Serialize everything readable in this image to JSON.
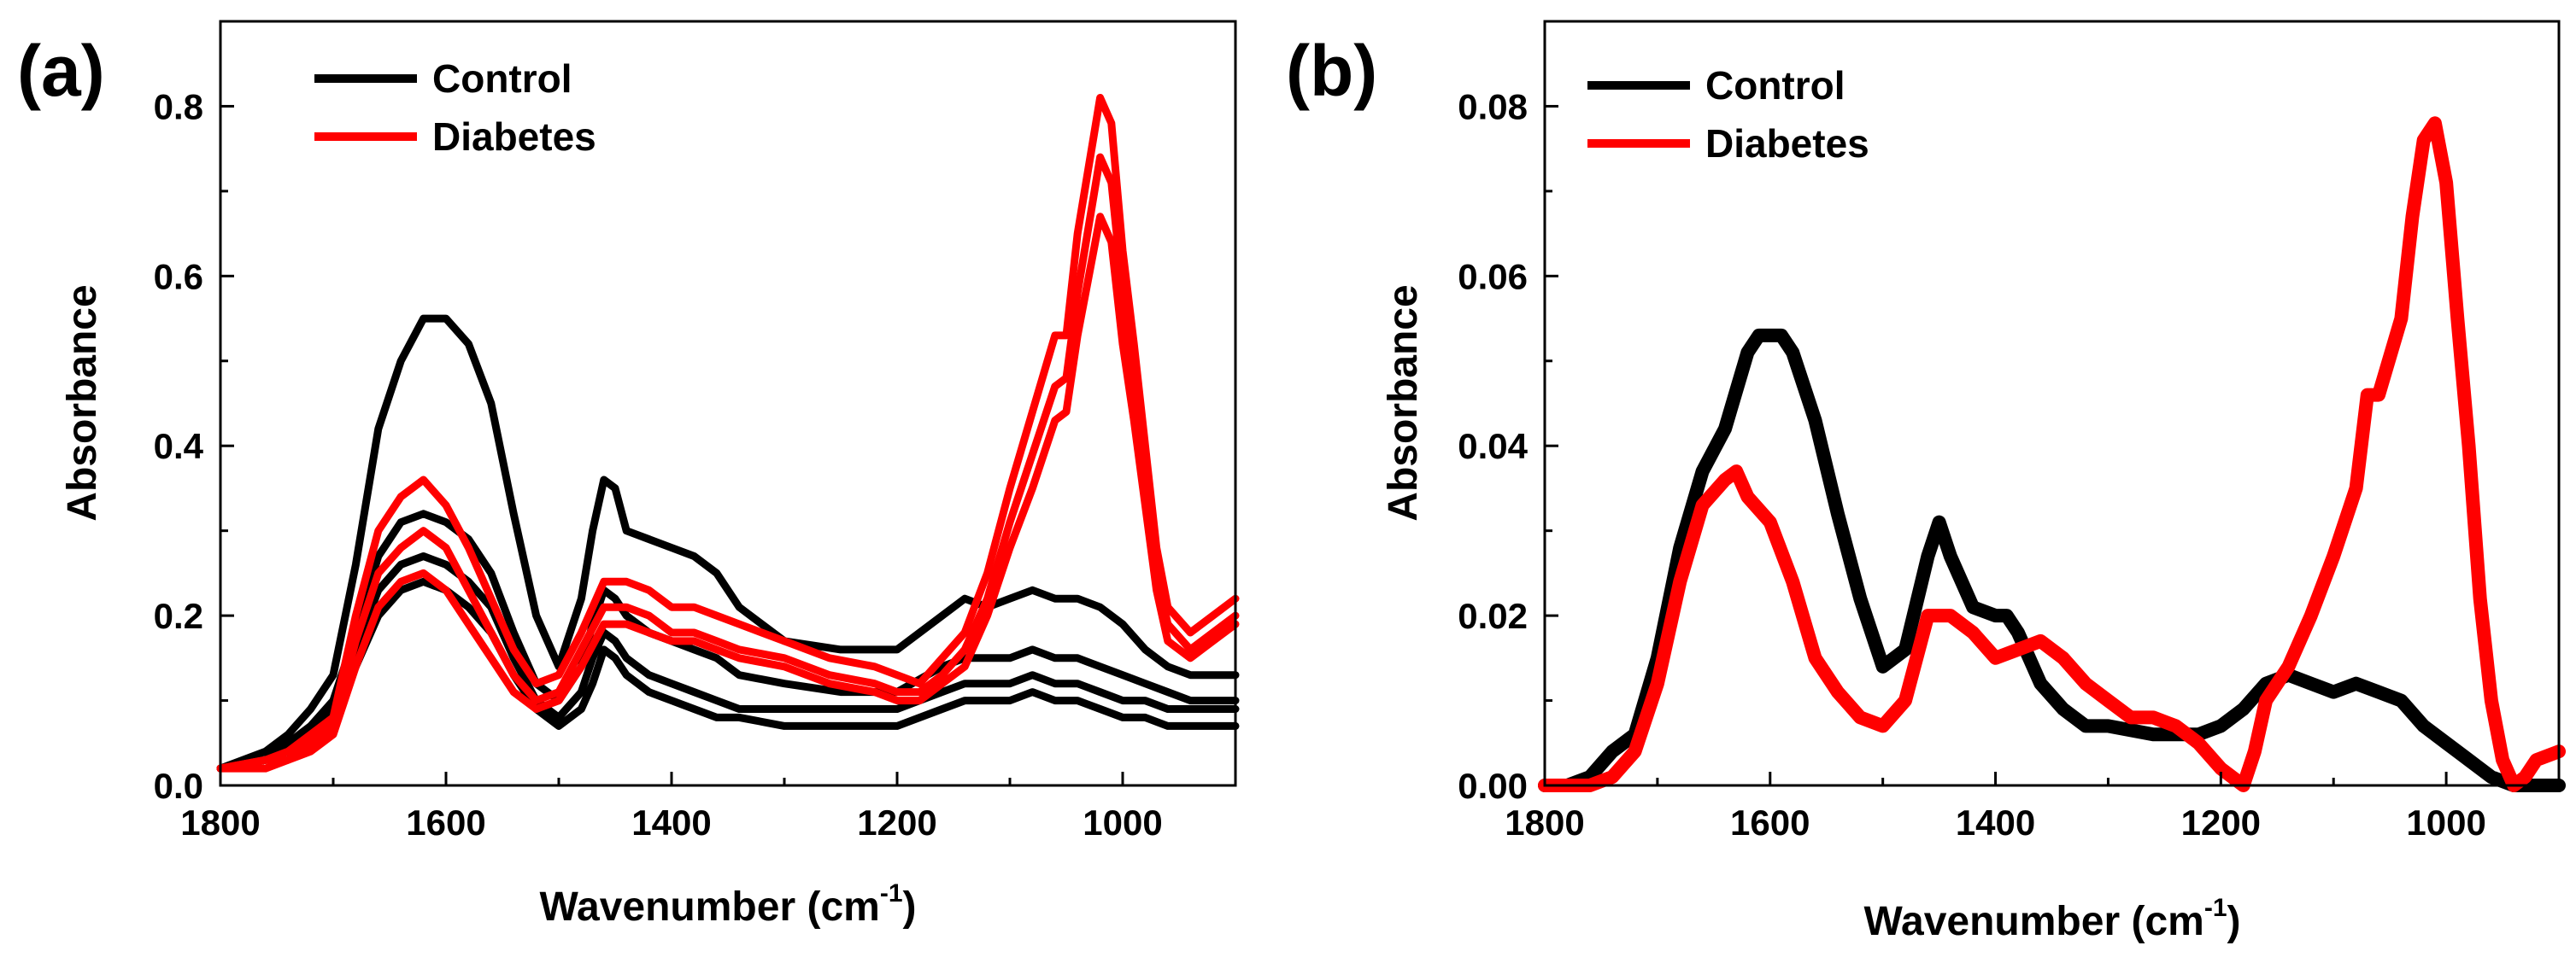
{
  "chart_data": [
    {
      "panel": "(a)",
      "type": "line",
      "title": "",
      "xlabel": "Wavenumber (cm",
      "xlabel_sup": "-1",
      "xlabel_close": ")",
      "ylabel": "Absorbance",
      "xlim": [
        1800,
        900
      ],
      "ylim": [
        0,
        0.9
      ],
      "xticks": [
        1800,
        1600,
        1400,
        1200,
        1000
      ],
      "xtick_labels": [
        "1800",
        "1600",
        "1400",
        "1200",
        "1000"
      ],
      "yticks": [
        0,
        0.2,
        0.4,
        0.6,
        0.8
      ],
      "ytick_labels": [
        "0.0",
        "0.2",
        "0.4",
        "0.6",
        "0.8"
      ],
      "legend": {
        "position": "top-left",
        "entries": [
          {
            "label": "Control",
            "color": "#000000"
          },
          {
            "label": "Diabetes",
            "color": "#ff0000"
          }
        ]
      },
      "series": [
        {
          "name": "Control",
          "color": "#000000",
          "x": [
            1800,
            1760,
            1740,
            1720,
            1700,
            1680,
            1660,
            1640,
            1620,
            1600,
            1580,
            1560,
            1540,
            1520,
            1500,
            1480,
            1470,
            1460,
            1450,
            1440,
            1420,
            1400,
            1380,
            1360,
            1340,
            1300,
            1250,
            1200,
            1160,
            1140,
            1120,
            1100,
            1080,
            1060,
            1040,
            1020,
            1000,
            980,
            960,
            940,
            900
          ],
          "y": [
            0.02,
            0.04,
            0.06,
            0.09,
            0.13,
            0.26,
            0.42,
            0.5,
            0.55,
            0.55,
            0.52,
            0.45,
            0.32,
            0.2,
            0.14,
            0.22,
            0.3,
            0.36,
            0.35,
            0.3,
            0.29,
            0.28,
            0.27,
            0.25,
            0.21,
            0.17,
            0.16,
            0.16,
            0.2,
            0.22,
            0.21,
            0.22,
            0.23,
            0.22,
            0.22,
            0.21,
            0.19,
            0.16,
            0.14,
            0.13,
            0.13
          ]
        },
        {
          "name": "Control",
          "color": "#000000",
          "x": [
            1800,
            1760,
            1740,
            1720,
            1700,
            1680,
            1660,
            1640,
            1620,
            1600,
            1580,
            1560,
            1540,
            1520,
            1500,
            1480,
            1470,
            1460,
            1450,
            1440,
            1420,
            1400,
            1380,
            1360,
            1340,
            1300,
            1250,
            1200,
            1160,
            1140,
            1120,
            1100,
            1080,
            1060,
            1040,
            1020,
            1000,
            980,
            960,
            940,
            900
          ],
          "y": [
            0.02,
            0.03,
            0.05,
            0.07,
            0.1,
            0.18,
            0.27,
            0.31,
            0.32,
            0.31,
            0.29,
            0.25,
            0.18,
            0.12,
            0.1,
            0.14,
            0.19,
            0.23,
            0.22,
            0.2,
            0.18,
            0.17,
            0.16,
            0.15,
            0.13,
            0.12,
            0.11,
            0.11,
            0.14,
            0.15,
            0.15,
            0.15,
            0.16,
            0.15,
            0.15,
            0.14,
            0.13,
            0.12,
            0.11,
            0.1,
            0.1
          ]
        },
        {
          "name": "Control",
          "color": "#000000",
          "x": [
            1800,
            1760,
            1740,
            1720,
            1700,
            1680,
            1660,
            1640,
            1620,
            1600,
            1580,
            1560,
            1540,
            1520,
            1500,
            1480,
            1470,
            1460,
            1450,
            1440,
            1420,
            1400,
            1380,
            1360,
            1340,
            1300,
            1250,
            1200,
            1160,
            1140,
            1120,
            1100,
            1080,
            1060,
            1040,
            1020,
            1000,
            980,
            960,
            940,
            900
          ],
          "y": [
            0.02,
            0.03,
            0.04,
            0.06,
            0.09,
            0.16,
            0.23,
            0.26,
            0.27,
            0.26,
            0.24,
            0.21,
            0.15,
            0.1,
            0.08,
            0.11,
            0.15,
            0.18,
            0.17,
            0.15,
            0.13,
            0.12,
            0.11,
            0.1,
            0.09,
            0.09,
            0.09,
            0.09,
            0.11,
            0.12,
            0.12,
            0.12,
            0.13,
            0.12,
            0.12,
            0.11,
            0.1,
            0.1,
            0.09,
            0.09,
            0.09
          ]
        },
        {
          "name": "Control",
          "color": "#000000",
          "x": [
            1800,
            1760,
            1740,
            1720,
            1700,
            1680,
            1660,
            1640,
            1620,
            1600,
            1580,
            1560,
            1540,
            1520,
            1500,
            1480,
            1470,
            1460,
            1450,
            1440,
            1420,
            1400,
            1380,
            1360,
            1340,
            1300,
            1250,
            1200,
            1160,
            1140,
            1120,
            1100,
            1080,
            1060,
            1040,
            1020,
            1000,
            980,
            960,
            940,
            900
          ],
          "y": [
            0.02,
            0.03,
            0.04,
            0.05,
            0.08,
            0.14,
            0.2,
            0.23,
            0.24,
            0.23,
            0.21,
            0.18,
            0.13,
            0.09,
            0.07,
            0.09,
            0.12,
            0.16,
            0.15,
            0.13,
            0.11,
            0.1,
            0.09,
            0.08,
            0.08,
            0.07,
            0.07,
            0.07,
            0.09,
            0.1,
            0.1,
            0.1,
            0.11,
            0.1,
            0.1,
            0.09,
            0.08,
            0.08,
            0.07,
            0.07,
            0.07
          ]
        },
        {
          "name": "Diabetes",
          "color": "#ff0000",
          "x": [
            1800,
            1760,
            1740,
            1720,
            1700,
            1680,
            1660,
            1640,
            1620,
            1600,
            1580,
            1560,
            1540,
            1520,
            1500,
            1480,
            1460,
            1440,
            1420,
            1400,
            1380,
            1360,
            1340,
            1300,
            1260,
            1220,
            1200,
            1180,
            1160,
            1140,
            1120,
            1100,
            1080,
            1060,
            1050,
            1040,
            1030,
            1020,
            1010,
            1000,
            990,
            980,
            970,
            960,
            940,
            920,
            900
          ],
          "y": [
            0.02,
            0.03,
            0.04,
            0.06,
            0.08,
            0.2,
            0.3,
            0.34,
            0.36,
            0.33,
            0.28,
            0.22,
            0.16,
            0.12,
            0.13,
            0.18,
            0.24,
            0.24,
            0.23,
            0.21,
            0.21,
            0.2,
            0.19,
            0.17,
            0.15,
            0.14,
            0.13,
            0.12,
            0.15,
            0.18,
            0.25,
            0.35,
            0.44,
            0.53,
            0.53,
            0.65,
            0.73,
            0.81,
            0.78,
            0.63,
            0.52,
            0.4,
            0.28,
            0.21,
            0.18,
            0.2,
            0.22
          ]
        },
        {
          "name": "Diabetes",
          "color": "#ff0000",
          "x": [
            1800,
            1760,
            1740,
            1720,
            1700,
            1680,
            1660,
            1640,
            1620,
            1600,
            1580,
            1560,
            1540,
            1520,
            1500,
            1480,
            1460,
            1440,
            1420,
            1400,
            1380,
            1360,
            1340,
            1300,
            1260,
            1220,
            1200,
            1180,
            1160,
            1140,
            1120,
            1100,
            1080,
            1060,
            1050,
            1040,
            1030,
            1020,
            1010,
            1000,
            990,
            980,
            970,
            960,
            940,
            920,
            900
          ],
          "y": [
            0.02,
            0.03,
            0.03,
            0.05,
            0.07,
            0.17,
            0.25,
            0.28,
            0.3,
            0.28,
            0.23,
            0.18,
            0.13,
            0.1,
            0.11,
            0.16,
            0.21,
            0.21,
            0.2,
            0.18,
            0.18,
            0.17,
            0.16,
            0.15,
            0.13,
            0.12,
            0.11,
            0.11,
            0.13,
            0.16,
            0.22,
            0.31,
            0.39,
            0.47,
            0.48,
            0.58,
            0.66,
            0.74,
            0.71,
            0.58,
            0.47,
            0.36,
            0.25,
            0.19,
            0.16,
            0.18,
            0.2
          ]
        },
        {
          "name": "Diabetes",
          "color": "#ff0000",
          "x": [
            1800,
            1760,
            1740,
            1720,
            1700,
            1680,
            1660,
            1640,
            1620,
            1600,
            1580,
            1560,
            1540,
            1520,
            1500,
            1480,
            1460,
            1440,
            1420,
            1400,
            1380,
            1360,
            1340,
            1300,
            1260,
            1220,
            1200,
            1180,
            1160,
            1140,
            1120,
            1100,
            1080,
            1060,
            1050,
            1040,
            1030,
            1020,
            1010,
            1000,
            990,
            980,
            970,
            960,
            940,
            920,
            900
          ],
          "y": [
            0.02,
            0.02,
            0.03,
            0.04,
            0.06,
            0.14,
            0.21,
            0.24,
            0.25,
            0.23,
            0.19,
            0.15,
            0.11,
            0.09,
            0.1,
            0.14,
            0.19,
            0.19,
            0.18,
            0.17,
            0.17,
            0.16,
            0.15,
            0.14,
            0.12,
            0.11,
            0.1,
            0.1,
            0.12,
            0.14,
            0.2,
            0.28,
            0.35,
            0.43,
            0.44,
            0.53,
            0.6,
            0.67,
            0.64,
            0.52,
            0.43,
            0.33,
            0.23,
            0.17,
            0.15,
            0.17,
            0.19
          ]
        }
      ]
    },
    {
      "panel": "(b)",
      "type": "line",
      "title": "",
      "xlabel": "Wavenumber (cm",
      "xlabel_sup": "-1",
      "xlabel_close": ")",
      "ylabel": "Absorbance",
      "xlim": [
        1800,
        900
      ],
      "ylim": [
        0,
        0.09
      ],
      "xticks": [
        1800,
        1600,
        1400,
        1200,
        1000
      ],
      "xtick_labels": [
        "1800",
        "1600",
        "1400",
        "1200",
        "1000"
      ],
      "yticks": [
        0,
        0.02,
        0.04,
        0.06,
        0.08
      ],
      "ytick_labels": [
        "0.00",
        "0.02",
        "0.04",
        "0.06",
        "0.08"
      ],
      "legend": {
        "position": "top-left",
        "entries": [
          {
            "label": "Control",
            "color": "#000000"
          },
          {
            "label": "Diabetes",
            "color": "#ff0000"
          }
        ]
      },
      "series": [
        {
          "name": "Control",
          "color": "#000000",
          "x": [
            1800,
            1780,
            1760,
            1740,
            1720,
            1700,
            1680,
            1660,
            1640,
            1620,
            1610,
            1600,
            1590,
            1580,
            1560,
            1540,
            1520,
            1500,
            1480,
            1460,
            1450,
            1440,
            1420,
            1400,
            1390,
            1380,
            1360,
            1340,
            1320,
            1300,
            1260,
            1220,
            1200,
            1180,
            1160,
            1140,
            1120,
            1100,
            1080,
            1060,
            1040,
            1020,
            1000,
            980,
            960,
            940,
            920,
            900
          ],
          "y": [
            0,
            0,
            0.001,
            0.004,
            0.006,
            0.015,
            0.028,
            0.037,
            0.042,
            0.051,
            0.053,
            0.053,
            0.053,
            0.051,
            0.043,
            0.032,
            0.022,
            0.014,
            0.016,
            0.027,
            0.031,
            0.027,
            0.021,
            0.02,
            0.02,
            0.018,
            0.012,
            0.009,
            0.007,
            0.007,
            0.006,
            0.006,
            0.007,
            0.009,
            0.012,
            0.013,
            0.012,
            0.011,
            0.012,
            0.011,
            0.01,
            0.007,
            0.005,
            0.003,
            0.001,
            0,
            0,
            0
          ]
        },
        {
          "name": "Diabetes",
          "color": "#ff0000",
          "x": [
            1800,
            1780,
            1760,
            1740,
            1720,
            1700,
            1680,
            1660,
            1640,
            1630,
            1620,
            1600,
            1580,
            1560,
            1540,
            1520,
            1500,
            1480,
            1460,
            1440,
            1420,
            1400,
            1380,
            1360,
            1340,
            1320,
            1300,
            1280,
            1260,
            1240,
            1220,
            1200,
            1190,
            1180,
            1170,
            1160,
            1140,
            1120,
            1100,
            1080,
            1070,
            1060,
            1040,
            1030,
            1020,
            1010,
            1000,
            990,
            980,
            970,
            960,
            950,
            940,
            930,
            920,
            900
          ],
          "y": [
            0,
            0,
            0,
            0.001,
            0.004,
            0.012,
            0.024,
            0.033,
            0.036,
            0.037,
            0.034,
            0.031,
            0.024,
            0.015,
            0.011,
            0.008,
            0.007,
            0.01,
            0.02,
            0.02,
            0.018,
            0.015,
            0.016,
            0.017,
            0.015,
            0.012,
            0.01,
            0.008,
            0.008,
            0.007,
            0.005,
            0.002,
            0.001,
            0,
            0.004,
            0.01,
            0.014,
            0.02,
            0.027,
            0.035,
            0.046,
            0.046,
            0.055,
            0.067,
            0.076,
            0.078,
            0.071,
            0.055,
            0.04,
            0.022,
            0.01,
            0.003,
            0,
            0.001,
            0.003,
            0.004
          ]
        }
      ]
    }
  ]
}
